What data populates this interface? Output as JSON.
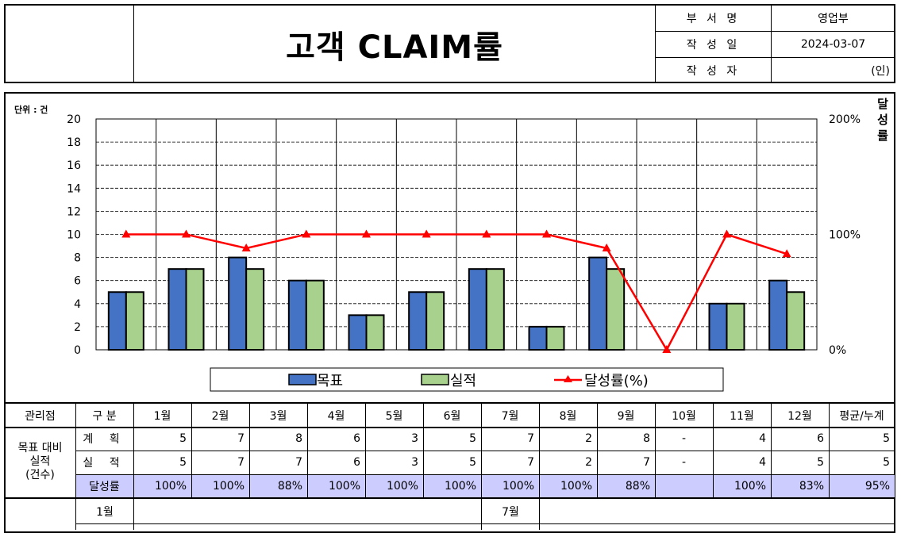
{
  "header": {
    "title": "고객 CLAIM률",
    "info": [
      {
        "label": "부 서 명",
        "value": "영업부"
      },
      {
        "label": "작 성 일",
        "value": "2024-03-07"
      },
      {
        "label": "작 성 자",
        "value": "(인)"
      }
    ]
  },
  "chart": {
    "unit_label": "단위 : 건",
    "right_axis_label": [
      "달",
      "성",
      "률"
    ],
    "left_ticks": [
      "20",
      "18",
      "16",
      "14",
      "12",
      "10",
      "8",
      "6",
      "4",
      "2",
      "0"
    ],
    "right_ticks": [
      "200%",
      "100%",
      "0%"
    ],
    "legend": {
      "target": "목표",
      "actual": "실적",
      "rate": "달성률(%)"
    },
    "colors": {
      "target": "#4472c4",
      "actual": "#a9d18e",
      "rate": "#ff0000"
    }
  },
  "chart_data": {
    "type": "bar",
    "categories": [
      "1월",
      "2월",
      "3월",
      "4월",
      "5월",
      "6월",
      "7월",
      "8월",
      "9월",
      "10월",
      "11월",
      "12월"
    ],
    "series": [
      {
        "name": "목표",
        "type": "bar",
        "axis": "left",
        "values": [
          5,
          7,
          8,
          6,
          3,
          5,
          7,
          2,
          8,
          0,
          4,
          6
        ]
      },
      {
        "name": "실적",
        "type": "bar",
        "axis": "left",
        "values": [
          5,
          7,
          7,
          6,
          3,
          5,
          7,
          2,
          7,
          0,
          4,
          5
        ]
      },
      {
        "name": "달성률(%)",
        "type": "line",
        "axis": "right",
        "values": [
          100,
          100,
          88,
          100,
          100,
          100,
          100,
          100,
          88,
          0,
          100,
          83
        ]
      }
    ],
    "ylim": [
      0,
      20
    ],
    "y2lim": [
      0,
      200
    ],
    "grid": true,
    "legend_position": "bottom"
  },
  "table": {
    "headers": [
      "관리점",
      "구  분",
      "1월",
      "2월",
      "3월",
      "4월",
      "5월",
      "6월",
      "7월",
      "8월",
      "9월",
      "10월",
      "11월",
      "12월",
      "평균/누계"
    ],
    "group_label": [
      "목표 대비",
      "실적",
      "(건수)"
    ],
    "rows": [
      {
        "label": "계 획",
        "values": [
          "5",
          "7",
          "8",
          "6",
          "3",
          "5",
          "7",
          "2",
          "8",
          "-",
          "4",
          "6",
          "5"
        ]
      },
      {
        "label": "실 적",
        "values": [
          "5",
          "7",
          "7",
          "6",
          "3",
          "5",
          "7",
          "2",
          "7",
          "-",
          "4",
          "5",
          "5"
        ]
      },
      {
        "label": "달성률",
        "values": [
          "100%",
          "100%",
          "88%",
          "100%",
          "100%",
          "100%",
          "100%",
          "100%",
          "88%",
          "",
          "100%",
          "83%",
          "95%"
        ]
      }
    ]
  },
  "notes": {
    "left_month": "1월",
    "right_month": "7월"
  }
}
